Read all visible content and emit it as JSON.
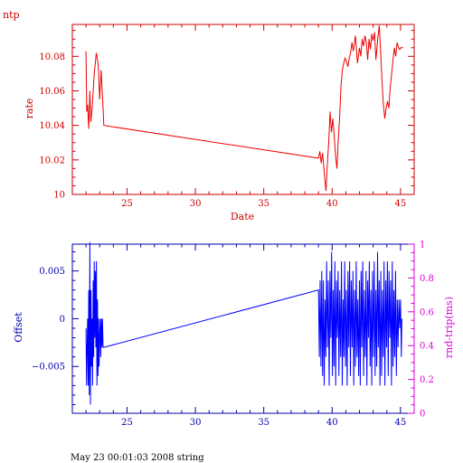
{
  "page": {
    "top_title": "ntp",
    "footer": "May 23 00:01:03 2008 string"
  },
  "colors": {
    "top_axes": "#cc0000",
    "top_line": "#ee0000",
    "bottom_axes": "#0000aa",
    "bottom_line": "#0000ff",
    "right_axis": "#dd00dd",
    "text_black": "#000000"
  },
  "chart_data": [
    {
      "type": "line",
      "title": "ntp",
      "xlabel": "Date",
      "ylabel": "rate",
      "xlim": [
        21.0,
        46.0
      ],
      "ylim": [
        10.0,
        10.0985
      ],
      "xticks": [
        25,
        30,
        35,
        40,
        45
      ],
      "xtick_labels": [
        "25",
        "30",
        "35",
        "40",
        "45"
      ],
      "yticks": [
        10.0,
        10.02,
        10.04,
        10.06,
        10.08
      ],
      "ytick_labels": [
        "10",
        "10.02",
        "10.04",
        "10.06",
        "10.08"
      ],
      "series": [
        {
          "x": [
            22.0,
            22.05,
            22.12,
            22.2,
            22.28,
            22.35,
            22.45,
            22.6,
            22.75,
            22.9,
            23.0,
            23.1,
            23.25,
            23.3,
            39.0,
            39.1,
            39.2,
            39.3,
            39.45,
            39.55,
            39.65,
            39.75,
            39.85,
            39.95,
            40.05,
            40.15,
            40.25,
            40.35,
            40.45,
            40.55,
            40.65,
            40.75,
            40.85,
            40.95,
            41.05,
            41.15,
            41.25,
            41.35,
            41.45,
            41.55,
            41.7,
            41.85,
            42.0,
            42.1,
            42.2,
            42.3,
            42.4,
            42.5,
            42.6,
            42.7,
            42.8,
            42.9,
            43.0,
            43.1,
            43.2,
            43.35,
            43.45,
            43.55,
            43.65,
            43.75,
            43.85,
            43.95,
            44.05,
            44.15,
            44.25,
            44.35,
            44.45,
            44.55,
            44.65,
            44.75,
            44.85,
            44.95,
            45.0,
            45.1,
            45.2
          ],
          "y": [
            10.083,
            10.048,
            10.052,
            10.038,
            10.06,
            10.042,
            10.05,
            10.07,
            10.082,
            10.075,
            10.055,
            10.072,
            10.05,
            10.04,
            10.021,
            10.025,
            10.018,
            10.024,
            10.01,
            10.002,
            10.018,
            10.03,
            10.048,
            10.036,
            10.044,
            10.035,
            10.022,
            10.015,
            10.032,
            10.045,
            10.063,
            10.072,
            10.076,
            10.079,
            10.077,
            10.074,
            10.079,
            10.082,
            10.088,
            10.083,
            10.092,
            10.076,
            10.085,
            10.08,
            10.09,
            10.086,
            10.092,
            10.088,
            10.078,
            10.09,
            10.084,
            10.093,
            10.089,
            10.094,
            10.078,
            10.091,
            10.098,
            10.082,
            10.065,
            10.052,
            10.044,
            10.05,
            10.054,
            10.05,
            10.062,
            10.07,
            10.078,
            10.085,
            10.08,
            10.088,
            10.085,
            10.084,
            10.085,
            10.085,
            10.085
          ]
        }
      ]
    },
    {
      "type": "line",
      "title": "",
      "xlabel": "",
      "ylabel": "Offset",
      "y2label": "rnd-trip(ms)",
      "xlim": [
        21.0,
        46.0
      ],
      "ylim": [
        -0.0099,
        0.0078
      ],
      "y2lim": [
        0,
        1
      ],
      "xticks": [
        25,
        30,
        35,
        40,
        45
      ],
      "xtick_labels": [
        "25",
        "30",
        "35",
        "40",
        "45"
      ],
      "yticks": [
        -0.005,
        0,
        0.005
      ],
      "ytick_labels": [
        "−0.005",
        "0",
        "0.005"
      ],
      "y2ticks": [
        0,
        0.2,
        0.4,
        0.6,
        0.8,
        1
      ],
      "y2tick_labels": [
        "0",
        "0.2",
        "0.4",
        "0.6",
        "0.8",
        "1"
      ],
      "series": [
        {
          "x": [
            22.0,
            22.04,
            22.08,
            22.12,
            22.16,
            22.2,
            22.24,
            22.28,
            22.32,
            22.36,
            22.4,
            22.44,
            22.48,
            22.52,
            22.56,
            22.6,
            22.64,
            22.68,
            22.72,
            22.76,
            22.8,
            22.84,
            22.88,
            22.92,
            22.96,
            23.0,
            23.04,
            23.08,
            23.12,
            23.16,
            23.2,
            23.25,
            23.3,
            39.0,
            39.06,
            39.12,
            39.18,
            39.24,
            39.3,
            39.36,
            39.42,
            39.48,
            39.54,
            39.6,
            39.66,
            39.72,
            39.78,
            39.84,
            39.9,
            39.96,
            40.02,
            40.08,
            40.14,
            40.2,
            40.26,
            40.32,
            40.38,
            40.44,
            40.5,
            40.56,
            40.62,
            40.68,
            40.74,
            40.8,
            40.86,
            40.92,
            40.98,
            41.04,
            41.1,
            41.16,
            41.22,
            41.28,
            41.34,
            41.4,
            41.46,
            41.52,
            41.58,
            41.64,
            41.7,
            41.76,
            41.82,
            41.88,
            41.94,
            42.0,
            42.06,
            42.12,
            42.18,
            42.24,
            42.3,
            42.36,
            42.42,
            42.48,
            42.54,
            42.6,
            42.66,
            42.72,
            42.78,
            42.84,
            42.9,
            42.96,
            43.02,
            43.08,
            43.14,
            43.2,
            43.26,
            43.32,
            43.38,
            43.44,
            43.5,
            43.56,
            43.62,
            43.68,
            43.74,
            43.8,
            43.86,
            43.92,
            43.98,
            44.04,
            44.1,
            44.16,
            44.22,
            44.28,
            44.34,
            44.4,
            44.46,
            44.52,
            44.58,
            44.64,
            44.7,
            44.76,
            44.82,
            44.88,
            44.94,
            45.0,
            45.06,
            45.1
          ],
          "y": [
            -0.001,
            -0.007,
            -0.003,
            0.0,
            -0.007,
            0.003,
            -0.008,
            0.008,
            -0.009,
            0.003,
            -0.005,
            0.0,
            -0.007,
            0.004,
            -0.004,
            0.006,
            -0.002,
            0.005,
            -0.003,
            0.006,
            -0.007,
            0.002,
            -0.006,
            0.0,
            -0.005,
            -0.002,
            0.0,
            -0.004,
            0.0,
            -0.003,
            0.0,
            -0.003,
            -0.003,
            0.003,
            -0.004,
            0.004,
            -0.005,
            0.005,
            -0.006,
            0.004,
            -0.007,
            0.002,
            -0.004,
            0.006,
            -0.003,
            0.004,
            -0.007,
            0.005,
            -0.002,
            0.007,
            -0.006,
            0.003,
            -0.005,
            0.006,
            -0.007,
            0.004,
            -0.002,
            0.005,
            -0.006,
            0.003,
            -0.004,
            0.006,
            -0.007,
            0.002,
            -0.004,
            0.006,
            -0.005,
            0.003,
            -0.007,
            0.005,
            -0.003,
            0.006,
            -0.006,
            0.004,
            -0.003,
            0.005,
            -0.007,
            0.003,
            -0.005,
            0.006,
            -0.004,
            0.002,
            -0.006,
            0.004,
            -0.007,
            0.005,
            -0.003,
            0.006,
            -0.006,
            0.003,
            -0.004,
            0.005,
            -0.007,
            0.004,
            -0.002,
            0.006,
            -0.005,
            0.003,
            -0.007,
            0.005,
            -0.004,
            0.006,
            -0.006,
            0.003,
            -0.005,
            0.007,
            -0.003,
            0.004,
            -0.007,
            0.005,
            -0.006,
            0.003,
            -0.004,
            0.006,
            -0.007,
            0.004,
            -0.003,
            0.006,
            -0.006,
            0.005,
            -0.002,
            0.004,
            -0.007,
            0.006,
            -0.005,
            0.003,
            -0.004,
            0.005,
            -0.006,
            0.002,
            -0.003,
            0.002,
            -0.001,
            0.002,
            -0.004,
            0.0
          ]
        }
      ]
    }
  ]
}
